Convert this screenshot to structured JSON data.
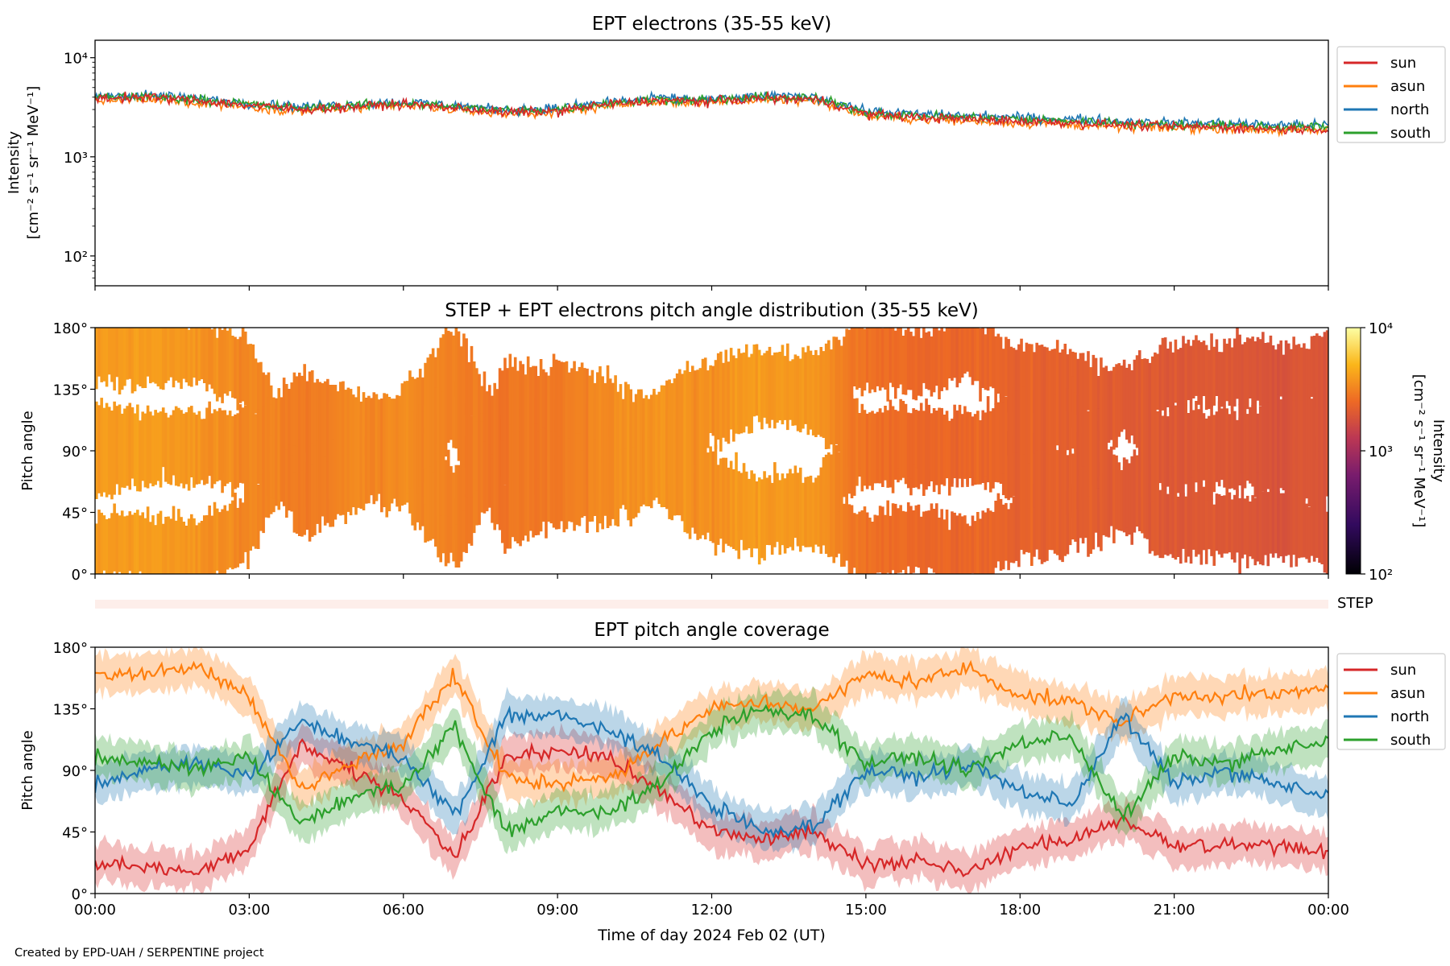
{
  "footer": {
    "credit": "Created by EPD-UAH / SERPENTINE project"
  },
  "colors": {
    "sun": "#d62728",
    "asun": "#ff7f0e",
    "north": "#1f77b4",
    "south": "#2ca02c",
    "step_band": "#fdeeea"
  },
  "step_label": "STEP",
  "chart_data": [
    {
      "type": "line",
      "title": "EPT electrons (35-55 keV)",
      "ylabel": "Intensity",
      "yunit": "[cm⁻² s⁻¹ sr⁻¹ MeV⁻¹]",
      "yscale": "log",
      "ylim": [
        50,
        15000
      ],
      "yticks": [
        {
          "v": 100,
          "label": "10²"
        },
        {
          "v": 1000,
          "label": "10³"
        },
        {
          "v": 10000,
          "label": "10⁴"
        }
      ],
      "xlim": [
        "2024-02-02T00:00",
        "2024-02-03T00:00"
      ],
      "legend_position": "outside-right-top",
      "x": [
        "00:00",
        "01:00",
        "02:00",
        "03:00",
        "04:00",
        "05:00",
        "06:00",
        "07:00",
        "08:00",
        "09:00",
        "10:00",
        "11:00",
        "12:00",
        "13:00",
        "14:00",
        "15:00",
        "16:00",
        "17:00",
        "18:00",
        "19:00",
        "20:00",
        "21:00",
        "22:00",
        "23:00",
        "24:00"
      ],
      "series": [
        {
          "name": "sun",
          "values": [
            3900,
            4000,
            3700,
            3300,
            3000,
            3200,
            3400,
            3100,
            2800,
            2900,
            3400,
            3700,
            3600,
            3900,
            3800,
            2700,
            2500,
            2400,
            2300,
            2200,
            2100,
            2000,
            2000,
            1900,
            1900
          ]
        },
        {
          "name": "asun",
          "values": [
            3700,
            3800,
            3500,
            3200,
            2900,
            3100,
            3300,
            3000,
            2700,
            2800,
            3300,
            3600,
            3500,
            3800,
            3700,
            2600,
            2400,
            2300,
            2200,
            2100,
            2000,
            1950,
            1950,
            1850,
            1850
          ]
        },
        {
          "name": "north",
          "values": [
            4100,
            4200,
            3900,
            3500,
            3200,
            3400,
            3600,
            3300,
            3000,
            3100,
            3600,
            3900,
            3800,
            4100,
            4000,
            2900,
            2700,
            2600,
            2500,
            2400,
            2300,
            2200,
            2200,
            2100,
            2100
          ]
        },
        {
          "name": "south",
          "values": [
            4000,
            4100,
            3800,
            3400,
            3100,
            3300,
            3500,
            3200,
            2900,
            3000,
            3500,
            3800,
            3700,
            4000,
            3900,
            2800,
            2600,
            2500,
            2400,
            2300,
            2200,
            2100,
            2100,
            2000,
            2000
          ]
        }
      ]
    },
    {
      "type": "heatmap",
      "title": "STEP + EPT electrons pitch angle distribution (35-55 keV)",
      "ylabel": "Pitch angle",
      "ylim": [
        0,
        180
      ],
      "yticks": [
        "0°",
        "45°",
        "90°",
        "135°",
        "180°"
      ],
      "colorbar": {
        "label": "Intensity",
        "unit": "[cm⁻² s⁻¹ sr⁻¹ MeV⁻¹]",
        "scale": "log",
        "range": [
          100,
          10000
        ],
        "ticks": [
          {
            "v": 100,
            "label": "10²"
          },
          {
            "v": 1000,
            "label": "10³"
          },
          {
            "v": 10000,
            "label": "10⁴"
          }
        ],
        "colormap": "inferno"
      },
      "x": [
        "00:00",
        "01:00",
        "02:00",
        "03:00",
        "04:00",
        "05:00",
        "06:00",
        "07:00",
        "08:00",
        "09:00",
        "10:00",
        "11:00",
        "12:00",
        "13:00",
        "14:00",
        "15:00",
        "16:00",
        "17:00",
        "18:00",
        "19:00",
        "20:00",
        "21:00",
        "22:00",
        "23:00",
        "24:00"
      ],
      "intensity": [
        3900,
        4000,
        3700,
        3300,
        3000,
        3200,
        3400,
        3100,
        2800,
        2900,
        3400,
        3700,
        3600,
        3900,
        3800,
        2700,
        2500,
        2400,
        2300,
        2200,
        2100,
        2000,
        2000,
        1900,
        1900
      ]
    },
    {
      "type": "line",
      "title": "EPT pitch angle coverage",
      "ylabel": "Pitch angle",
      "xlabel": "Time of day 2024 Feb 02 (UT)",
      "ylim": [
        0,
        180
      ],
      "yticks": [
        "0°",
        "45°",
        "90°",
        "135°",
        "180°"
      ],
      "xticks": [
        "00:00",
        "03:00",
        "06:00",
        "09:00",
        "12:00",
        "15:00",
        "18:00",
        "21:00",
        "00:00"
      ],
      "legend_position": "outside-right-top",
      "x": [
        "00:00",
        "01:00",
        "02:00",
        "03:00",
        "04:00",
        "05:00",
        "06:00",
        "07:00",
        "08:00",
        "09:00",
        "10:00",
        "11:00",
        "12:00",
        "13:00",
        "14:00",
        "15:00",
        "16:00",
        "17:00",
        "18:00",
        "19:00",
        "20:00",
        "21:00",
        "22:00",
        "23:00",
        "24:00"
      ],
      "series": [
        {
          "name": "sun",
          "values": [
            22,
            20,
            15,
            35,
            110,
            90,
            70,
            25,
            100,
            105,
            100,
            75,
            45,
            40,
            45,
            20,
            25,
            15,
            35,
            40,
            55,
            35,
            35,
            35,
            30
          ]
        },
        {
          "name": "asun",
          "values": [
            160,
            162,
            165,
            145,
            75,
            95,
            110,
            160,
            85,
            80,
            85,
            110,
            135,
            140,
            135,
            160,
            155,
            165,
            145,
            140,
            125,
            145,
            145,
            145,
            150
          ]
        },
        {
          "name": "north",
          "values": [
            80,
            90,
            95,
            85,
            125,
            110,
            100,
            55,
            130,
            130,
            120,
            100,
            65,
            45,
            50,
            90,
            85,
            95,
            75,
            65,
            130,
            80,
            90,
            80,
            70
          ]
        },
        {
          "name": "south",
          "values": [
            100,
            95,
            90,
            100,
            50,
            70,
            80,
            120,
            45,
            60,
            60,
            80,
            120,
            135,
            130,
            95,
            100,
            90,
            110,
            115,
            55,
            100,
            95,
            105,
            110
          ]
        }
      ]
    }
  ]
}
